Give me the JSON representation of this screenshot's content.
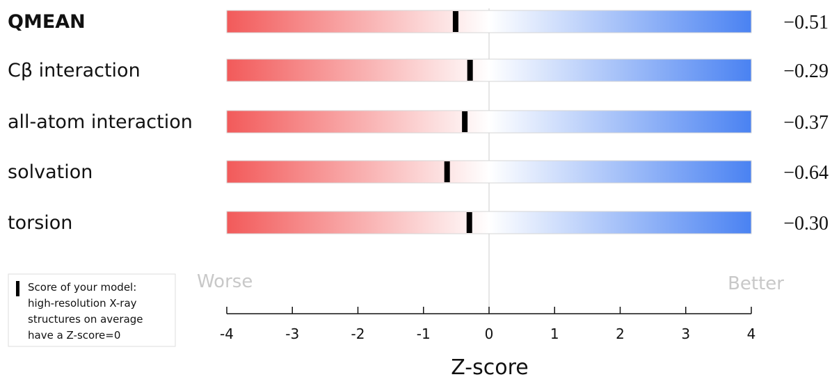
{
  "chart_data": {
    "type": "bar",
    "categories": [
      "QMEAN",
      "Cβ interaction",
      "all-atom interaction",
      "solvation",
      "torsion"
    ],
    "values": [
      -0.51,
      -0.29,
      -0.37,
      -0.64,
      -0.3
    ],
    "value_labels": [
      "−0.51",
      "−0.29",
      "−0.37",
      "−0.64",
      "−0.30"
    ],
    "xlim": [
      -4,
      4
    ],
    "xticks": [
      -4,
      -3,
      -2,
      -1,
      0,
      1,
      2,
      3,
      4
    ],
    "xlabel": "Z-score",
    "worse_label": "Worse",
    "better_label": "Better",
    "legend": {
      "lines": [
        "Score of your model:",
        "high-resolution X-ray",
        "structures on average",
        "have a Z-score=0"
      ]
    },
    "colors": {
      "worse": "#f25a5a",
      "neutral": "#ffffff",
      "better": "#4a82f2",
      "marker": "#000000",
      "zero_line": "#dddddd"
    }
  }
}
